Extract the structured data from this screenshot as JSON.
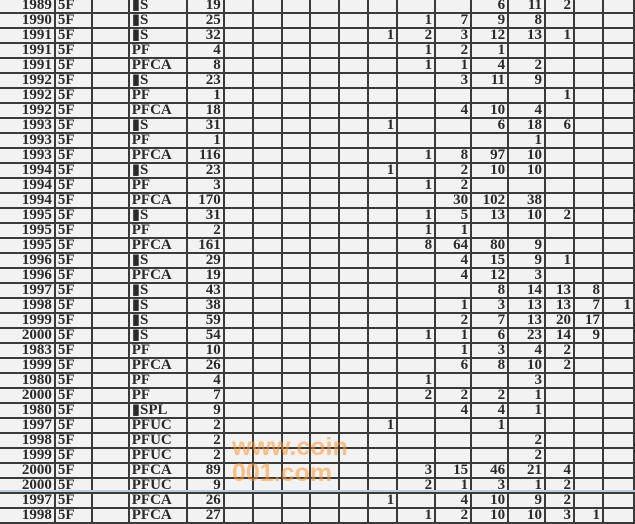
{
  "sheet": {
    "rows": [
      {
        "year": "1989",
        "code": "5F",
        "type": "▮S",
        "total": "19",
        "vals": [
          "",
          "",
          "",
          "6",
          "11",
          "2",
          "",
          ""
        ]
      },
      {
        "year": "1990",
        "code": "5F",
        "type": "▮S",
        "total": "25",
        "vals": [
          "",
          "1",
          "7",
          "9",
          "8",
          "",
          "",
          ""
        ]
      },
      {
        "year": "1991",
        "code": "5F",
        "type": "▮S",
        "total": "32",
        "vals": [
          "1",
          "2",
          "3",
          "12",
          "13",
          "1",
          "",
          ""
        ]
      },
      {
        "year": "1991",
        "code": "5F",
        "type": "PF",
        "total": "4",
        "vals": [
          "",
          "1",
          "2",
          "1",
          "",
          "",
          "",
          ""
        ]
      },
      {
        "year": "1991",
        "code": "5F",
        "type": "PFCA",
        "total": "8",
        "vals": [
          "",
          "1",
          "1",
          "4",
          "2",
          "",
          "",
          ""
        ]
      },
      {
        "year": "1992",
        "code": "5F",
        "type": "▮S",
        "total": "23",
        "vals": [
          "",
          "",
          "3",
          "11",
          "9",
          "",
          "",
          ""
        ]
      },
      {
        "year": "1992",
        "code": "5F",
        "type": "PF",
        "total": "1",
        "vals": [
          "",
          "",
          "",
          "",
          "",
          "1",
          "",
          ""
        ]
      },
      {
        "year": "1992",
        "code": "5F",
        "type": "PFCA",
        "total": "18",
        "vals": [
          "",
          "",
          "4",
          "10",
          "4",
          "",
          "",
          ""
        ]
      },
      {
        "year": "1993",
        "code": "5F",
        "type": "▮S",
        "total": "31",
        "vals": [
          "1",
          "",
          "",
          "6",
          "18",
          "6",
          "",
          ""
        ]
      },
      {
        "year": "1993",
        "code": "5F",
        "type": "PF",
        "total": "1",
        "vals": [
          "",
          "",
          "",
          "",
          "1",
          "",
          "",
          ""
        ]
      },
      {
        "year": "1993",
        "code": "5F",
        "type": "PFCA",
        "total": "116",
        "vals": [
          "",
          "1",
          "8",
          "97",
          "10",
          "",
          "",
          ""
        ]
      },
      {
        "year": "1994",
        "code": "5F",
        "type": "▮S",
        "total": "23",
        "vals": [
          "1",
          "",
          "2",
          "10",
          "10",
          "",
          "",
          ""
        ]
      },
      {
        "year": "1994",
        "code": "5F",
        "type": "PF",
        "total": "3",
        "vals": [
          "",
          "1",
          "2",
          "",
          "",
          "",
          "",
          ""
        ]
      },
      {
        "year": "1994",
        "code": "5F",
        "type": "PFCA",
        "total": "170",
        "vals": [
          "",
          "",
          "30",
          "102",
          "38",
          "",
          "",
          ""
        ]
      },
      {
        "year": "1995",
        "code": "5F",
        "type": "▮S",
        "total": "31",
        "vals": [
          "",
          "1",
          "5",
          "13",
          "10",
          "2",
          "",
          ""
        ]
      },
      {
        "year": "1995",
        "code": "5F",
        "type": "PF",
        "total": "2",
        "vals": [
          "",
          "1",
          "1",
          "",
          "",
          "",
          "",
          ""
        ]
      },
      {
        "year": "1995",
        "code": "5F",
        "type": "PFCA",
        "total": "161",
        "vals": [
          "",
          "8",
          "64",
          "80",
          "9",
          "",
          "",
          ""
        ]
      },
      {
        "year": "1996",
        "code": "5F",
        "type": "▮S",
        "total": "29",
        "vals": [
          "",
          "",
          "4",
          "15",
          "9",
          "1",
          "",
          ""
        ]
      },
      {
        "year": "1996",
        "code": "5F",
        "type": "PFCA",
        "total": "19",
        "vals": [
          "",
          "",
          "4",
          "12",
          "3",
          "",
          "",
          ""
        ]
      },
      {
        "year": "1997",
        "code": "5F",
        "type": "▮S",
        "total": "43",
        "vals": [
          "",
          "",
          "",
          "8",
          "14",
          "13",
          "8",
          ""
        ]
      },
      {
        "year": "1998",
        "code": "5F",
        "type": "▮S",
        "total": "38",
        "vals": [
          "",
          "",
          "1",
          "3",
          "13",
          "13",
          "7",
          "1"
        ]
      },
      {
        "year": "1999",
        "code": "5F",
        "type": "▮S",
        "total": "59",
        "vals": [
          "",
          "",
          "2",
          "7",
          "13",
          "20",
          "17",
          ""
        ]
      },
      {
        "year": "2000",
        "code": "5F",
        "type": "▮S",
        "total": "54",
        "vals": [
          "",
          "1",
          "1",
          "6",
          "23",
          "14",
          "9",
          ""
        ]
      },
      {
        "year": "1983",
        "code": "5F",
        "type": "PF",
        "total": "10",
        "vals": [
          "",
          "",
          "1",
          "3",
          "4",
          "2",
          "",
          ""
        ]
      },
      {
        "year": "1999",
        "code": "5F",
        "type": "PFCA",
        "total": "26",
        "vals": [
          "",
          "",
          "6",
          "8",
          "10",
          "2",
          "",
          ""
        ]
      },
      {
        "year": "1980",
        "code": "5F",
        "type": "PF",
        "total": "4",
        "vals": [
          "",
          "1",
          "",
          "",
          "3",
          "",
          "",
          ""
        ]
      },
      {
        "year": "2000",
        "code": "5F",
        "type": "PF",
        "total": "7",
        "vals": [
          "",
          "2",
          "2",
          "2",
          "1",
          "",
          "",
          ""
        ]
      },
      {
        "year": "1980",
        "code": "5F",
        "type": "▮SPL",
        "total": "9",
        "vals": [
          "",
          "",
          "4",
          "4",
          "1",
          "",
          "",
          ""
        ]
      },
      {
        "year": "1997",
        "code": "5F",
        "type": "PFUC",
        "total": "2",
        "vals": [
          "1",
          "",
          "",
          "1",
          "",
          "",
          "",
          ""
        ]
      },
      {
        "year": "1998",
        "code": "5F",
        "type": "PFUC",
        "total": "2",
        "vals": [
          "",
          "",
          "",
          "",
          "2",
          "",
          "",
          ""
        ]
      },
      {
        "year": "1999",
        "code": "5F",
        "type": "PFUC",
        "total": "2",
        "vals": [
          "",
          "",
          "",
          "",
          "2",
          "",
          "",
          ""
        ]
      },
      {
        "year": "2000",
        "code": "5F",
        "type": "PFCA",
        "total": "89",
        "vals": [
          "",
          "3",
          "15",
          "46",
          "21",
          "4",
          "",
          ""
        ]
      },
      {
        "year": "2000",
        "code": "5F",
        "type": "PFUC",
        "total": "9",
        "vals": [
          "",
          "2",
          "1",
          "3",
          "1",
          "2",
          "",
          ""
        ]
      },
      {
        "year": "1997",
        "code": "5F",
        "type": "PFCA",
        "total": "26",
        "vals": [
          "1",
          "",
          "4",
          "10",
          "9",
          "2",
          "",
          ""
        ]
      },
      {
        "year": "1998",
        "code": "5F",
        "type": "PFCA",
        "total": "27",
        "vals": [
          "",
          "1",
          "2",
          "10",
          "10",
          "3",
          "1",
          ""
        ]
      }
    ]
  },
  "watermark": "www.coin001.com"
}
